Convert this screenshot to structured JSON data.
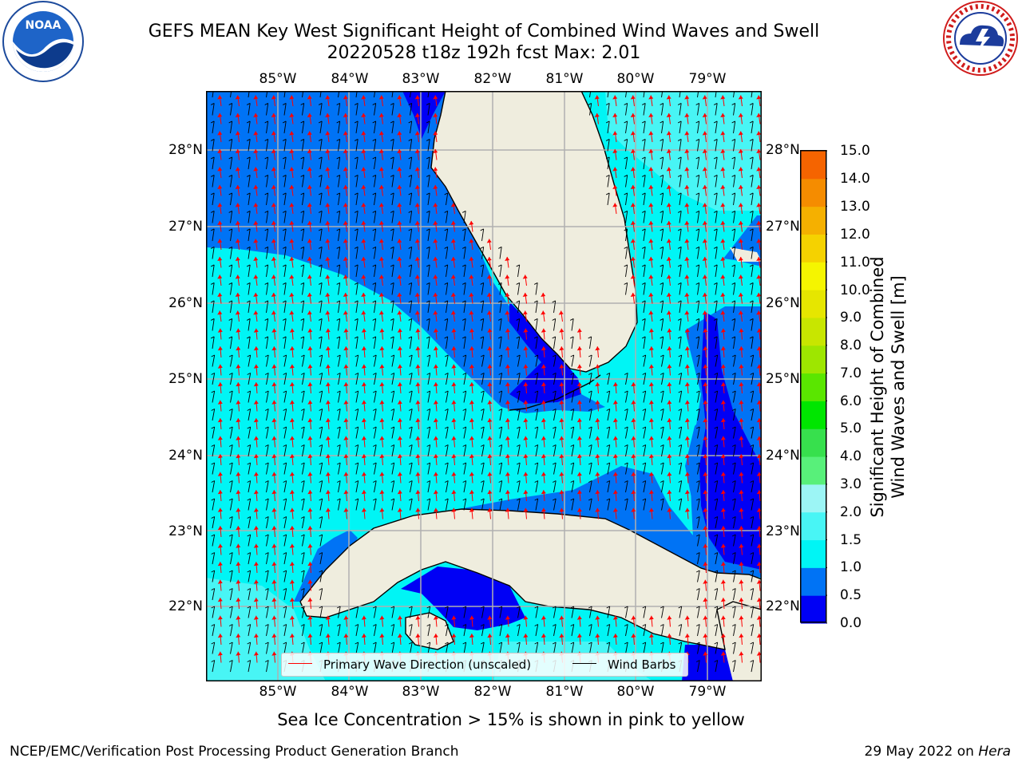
{
  "title": {
    "line1": "GEFS MEAN Key West Significant Height of Combined Wind Waves and Swell",
    "line2": "20220528 t18z 192h fcst   Max: 2.01"
  },
  "map": {
    "lon_labels": [
      "85°W",
      "84°W",
      "83°W",
      "82°W",
      "81°W",
      "80°W",
      "79°W"
    ],
    "lat_labels": [
      "28°N",
      "27°N",
      "26°N",
      "25°N",
      "24°N",
      "23°N",
      "22°N"
    ],
    "colors": {
      "land": "#efedde",
      "sea_0_05": "#0000f5",
      "sea_05_1": "#0073f5",
      "sea_1_15": "#00f5f5",
      "sea_15_2": "#48f5f5",
      "grid": "#b0b0b0",
      "wave_arrow": "#ff0000",
      "wind_barb": "#000000"
    },
    "legend": {
      "wave_label": "Primary Wave Direction (unscaled)",
      "wind_label": "Wind Barbs"
    }
  },
  "colorbar": {
    "ticks": [
      "15.0",
      "14.0",
      "13.0",
      "12.0",
      "11.0",
      "10.0",
      "9.0",
      "8.0",
      "7.0",
      "6.0",
      "5.0",
      "4.0",
      "3.0",
      "2.0",
      "1.5",
      "1.0",
      "0.5",
      "0.0"
    ],
    "colors": [
      "#0000f5",
      "#0073f5",
      "#00f5f5",
      "#48f5f5",
      "#9cf5f5",
      "#58f07a",
      "#37e04d",
      "#00e600",
      "#5ae600",
      "#9ee600",
      "#c8e600",
      "#e6e600",
      "#f5f500",
      "#f5d200",
      "#f5b000",
      "#f58c00",
      "#f56400",
      "#f53c00",
      "#f50000"
    ],
    "label_line1": "Significant Height of Combined",
    "label_line2": "Wind Waves and Swell [m]"
  },
  "note": "Sea Ice Concentration > 15% is shown in pink to yellow",
  "footer": {
    "left": "NCEP/EMC/Verification Post Processing Product Generation Branch",
    "date": "29 May 2022 on ",
    "machine": "Hera"
  },
  "logos": {
    "noaa_text": "NOAA",
    "noaa_ring": "NATIONAL OCEANIC AND ATMOSPHERIC ADMINISTRATION • U.S. DEPARTMENT OF COMMERCE",
    "nws_ring": "NATIONAL WEATHER SERVICE"
  }
}
